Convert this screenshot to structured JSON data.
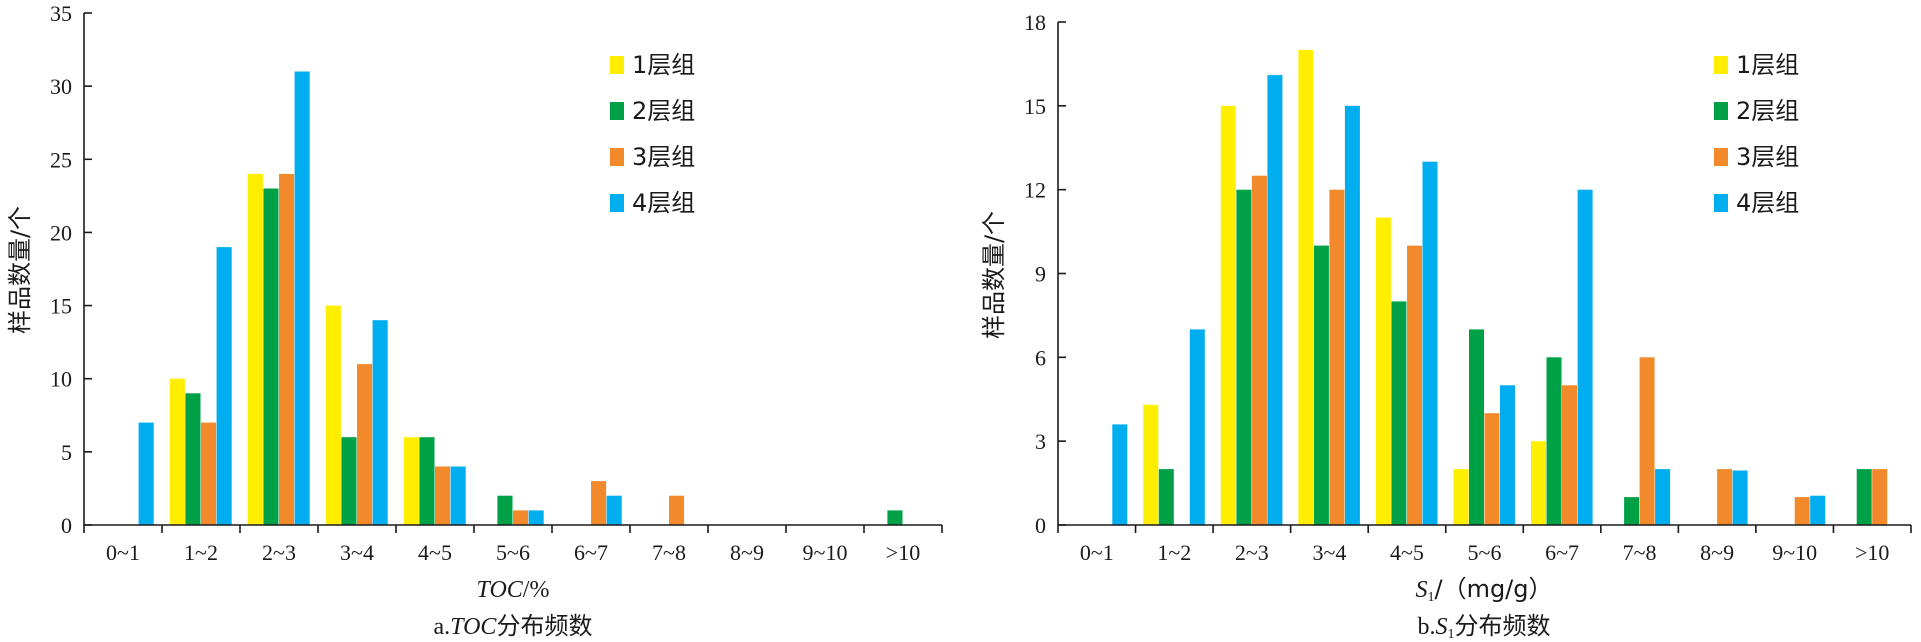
{
  "chart_data": [
    {
      "type": "bar",
      "categories": [
        "0~1",
        "1~2",
        "2~3",
        "3~4",
        "4~5",
        "5~6",
        "6~7",
        "7~8",
        "8~9",
        "9~10",
        ">10"
      ],
      "series": [
        {
          "name": "1层组",
          "color": "#ffee00",
          "values": [
            0,
            10,
            24,
            15,
            6,
            0,
            0,
            0,
            0,
            0,
            0
          ]
        },
        {
          "name": "2层组",
          "color": "#00a046",
          "values": [
            0,
            9,
            23,
            6,
            6,
            2,
            0,
            0,
            0,
            0,
            1
          ]
        },
        {
          "name": "3层组",
          "color": "#f28a2c",
          "values": [
            0,
            7,
            24,
            11,
            4,
            1,
            3,
            2,
            0,
            0,
            0
          ]
        },
        {
          "name": "4层组",
          "color": "#00aeef",
          "values": [
            7,
            19,
            31,
            14,
            4,
            1,
            2,
            0,
            0,
            0,
            0
          ]
        }
      ],
      "ylim": [
        0,
        35
      ],
      "yticks": [
        0,
        5,
        10,
        15,
        20,
        25,
        30,
        35
      ],
      "ylabel": "样品数量/个",
      "xlabel_main": "TOC",
      "xlabel_unit": "/%",
      "caption_prefix": "a.",
      "caption_var": "TOC",
      "caption_suffix": "分布频数",
      "legend_position": "top-right"
    },
    {
      "type": "bar",
      "categories": [
        "0~1",
        "1~2",
        "2~3",
        "3~4",
        "4~5",
        "5~6",
        "6~7",
        "7~8",
        "8~9",
        "9~10",
        ">10"
      ],
      "series": [
        {
          "name": "1层组",
          "color": "#ffee00",
          "values": [
            0,
            4.3,
            15,
            17,
            11,
            2,
            3,
            0,
            0,
            0,
            0
          ]
        },
        {
          "name": "2层组",
          "color": "#00a046",
          "values": [
            0,
            2,
            12,
            10,
            8,
            7,
            6,
            1,
            0,
            0,
            2
          ]
        },
        {
          "name": "3层组",
          "color": "#f28a2c",
          "values": [
            0,
            0,
            12.5,
            12,
            10,
            4,
            5,
            6,
            2,
            1,
            2
          ]
        },
        {
          "name": "4层组",
          "color": "#00aeef",
          "values": [
            3.6,
            7,
            16.1,
            15,
            13,
            5,
            12,
            2,
            1.95,
            1.05,
            0
          ]
        }
      ],
      "ylim": [
        0,
        18
      ],
      "yticks": [
        0,
        3,
        6,
        9,
        12,
        15,
        18
      ],
      "ylabel": "样品数量/个",
      "xlabel_main": "S",
      "xlabel_sub": "1",
      "xlabel_unit": "/（mg/g）",
      "caption_prefix": "b.",
      "caption_var": "S",
      "caption_sub": "1",
      "caption_suffix": "分布频数",
      "legend_position": "top-right"
    }
  ]
}
